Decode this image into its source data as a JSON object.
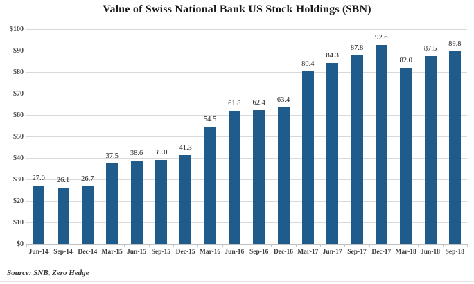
{
  "source": "Source: SNB, Zero Hedge",
  "colors": {
    "bar": "#1f5c8b",
    "gridline": "#d9d9d9",
    "baseline": "#bfbfbf",
    "axis_text": "#404040",
    "value_text": "#262626",
    "title_text": "#1a1a1a"
  },
  "chart_data": {
    "type": "bar",
    "title": "Value of Swiss National Bank US Stock Holdings ($BN)",
    "categories": [
      "Jun-14",
      "Sep-14",
      "Dec-14",
      "Mar-15",
      "Jun-15",
      "Sep-15",
      "Dec-15",
      "Mar-16",
      "Jun-16",
      "Sep-16",
      "Dec-16",
      "Mar-17",
      "Jun-17",
      "Sep-17",
      "Dec-17",
      "Mar-18",
      "Jun-18",
      "Sep-18"
    ],
    "values": [
      27.0,
      26.1,
      26.7,
      37.5,
      38.6,
      39.0,
      41.3,
      54.5,
      61.8,
      62.4,
      63.4,
      80.4,
      84.3,
      87.8,
      92.6,
      82.0,
      87.5,
      89.8
    ],
    "value_label_decimals": 1,
    "xlabel": "",
    "ylabel": "",
    "ylim": [
      0,
      100
    ],
    "ytick_values": [
      0,
      10,
      20,
      30,
      40,
      50,
      60,
      70,
      80,
      90,
      100
    ],
    "ytick_labels": [
      "$0",
      "$10",
      "$20",
      "$30",
      "$40",
      "$50",
      "$60",
      "$70",
      "$80",
      "$90",
      "$100"
    ],
    "grid": true,
    "legend": false,
    "bar_color": "#1f5c8b"
  }
}
